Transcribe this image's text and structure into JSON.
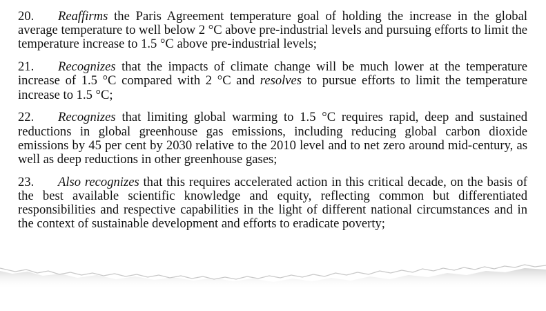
{
  "document": {
    "paragraphs": [
      {
        "number": "20.",
        "lead": "Reaffirms",
        "text": " the Paris Agreement temperature goal of holding the increase in the global average temperature to well below 2 °C above pre-industrial levels and pursuing efforts to limit the temperature increase to 1.5 °C above pre-industrial levels;"
      },
      {
        "number": "21.",
        "lead": "Recognizes",
        "text": " that the impacts of climate change will be much lower at the temperature increase of 1.5 °C compared with 2 °C and ",
        "inline_italic": "resolves",
        "text_after": " to pursue efforts to limit the temperature increase to 1.5 °C;"
      },
      {
        "number": "22.",
        "lead": "Recognizes",
        "text": " that limiting global warming to 1.5 °C requires rapid, deep and sustained reductions in global greenhouse gas emissions, including reducing global carbon dioxide emissions by 45 per cent by 2030 relative to the 2010 level and to net zero around mid-century, as well as deep reductions in other greenhouse gases;"
      },
      {
        "number": "23.",
        "lead": "Also recognizes",
        "text": " that this requires accelerated action in this critical decade, on the basis of the best available scientific knowledge and equity, reflecting common but differentiated responsibilities and respective capabilities in the light of different national circumstances and in the context of sustainable development and efforts to eradicate poverty;"
      }
    ]
  },
  "colors": {
    "paper": "#ffffff",
    "text": "#111111",
    "torn_shadow": "#d9d9d9"
  }
}
